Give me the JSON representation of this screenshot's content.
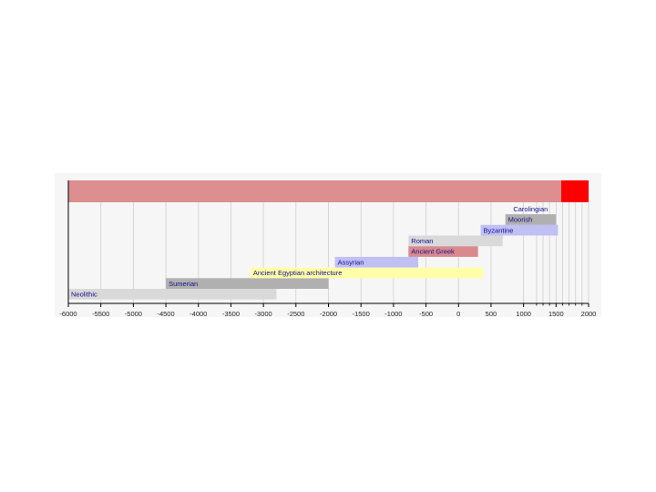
{
  "chart_data": {
    "type": "bar",
    "orientation": "horizontal-range",
    "xlim": [
      -6000,
      2000
    ],
    "x_ticks": [
      -6000,
      -5500,
      -5000,
      -4500,
      -4000,
      -3500,
      -3000,
      -2500,
      -2000,
      -1500,
      -1000,
      -500,
      0,
      500,
      1000,
      1500,
      2000
    ],
    "x_tick_labels": [
      "-6000",
      "-5500",
      "-5000",
      "-4500",
      "-4000",
      "-3500",
      "-3000",
      "-2500",
      "-2000",
      "-1500",
      "-1000",
      "-500",
      "0",
      "500",
      "1000",
      "1500",
      "2000"
    ],
    "extra_gridlines": [
      1200,
      1300,
      1400,
      1600,
      1700,
      1800,
      1900
    ],
    "grid": true,
    "overview_band": {
      "start": -6000,
      "end": 2000,
      "highlight_start": 1580,
      "highlight_end": 2000,
      "color": "#dd8e8e",
      "highlight_color": "#ff0000"
    },
    "series": [
      {
        "label": "Neolithic",
        "start": -6000,
        "end": -2800,
        "color": "#d9d9d9",
        "label_color": "#10108a"
      },
      {
        "label": "Sumerian",
        "start": -4500,
        "end": -2000,
        "color": "#b0b0b0",
        "label_color": "#10108a"
      },
      {
        "label": "Ancient Egyptian architecture",
        "start": -3200,
        "end": 380,
        "color": "#ffffa8",
        "label_color": "#10108a"
      },
      {
        "label": "Assyrian",
        "start": -1900,
        "end": -620,
        "color": "#c0c0f4",
        "label_color": "#10108a"
      },
      {
        "label": "Ancient Greek",
        "start": -770,
        "end": 300,
        "color": "#d98a8e",
        "label_color": "#3a0010"
      },
      {
        "label": "Roman",
        "start": -770,
        "end": 680,
        "color": "#d9d9d9",
        "label_color": "#10108a"
      },
      {
        "label": "Byzantine",
        "start": 340,
        "end": 1530,
        "color": "#c0c0f4",
        "label_color": "#10108a"
      },
      {
        "label": "Moorish",
        "start": 720,
        "end": 1500,
        "color": "#b0b0b0",
        "label_color": "#10108a"
      },
      {
        "label": "Carolingian",
        "start": 800,
        "end": 1000,
        "color": "none",
        "label_color": "#10108a"
      }
    ]
  }
}
